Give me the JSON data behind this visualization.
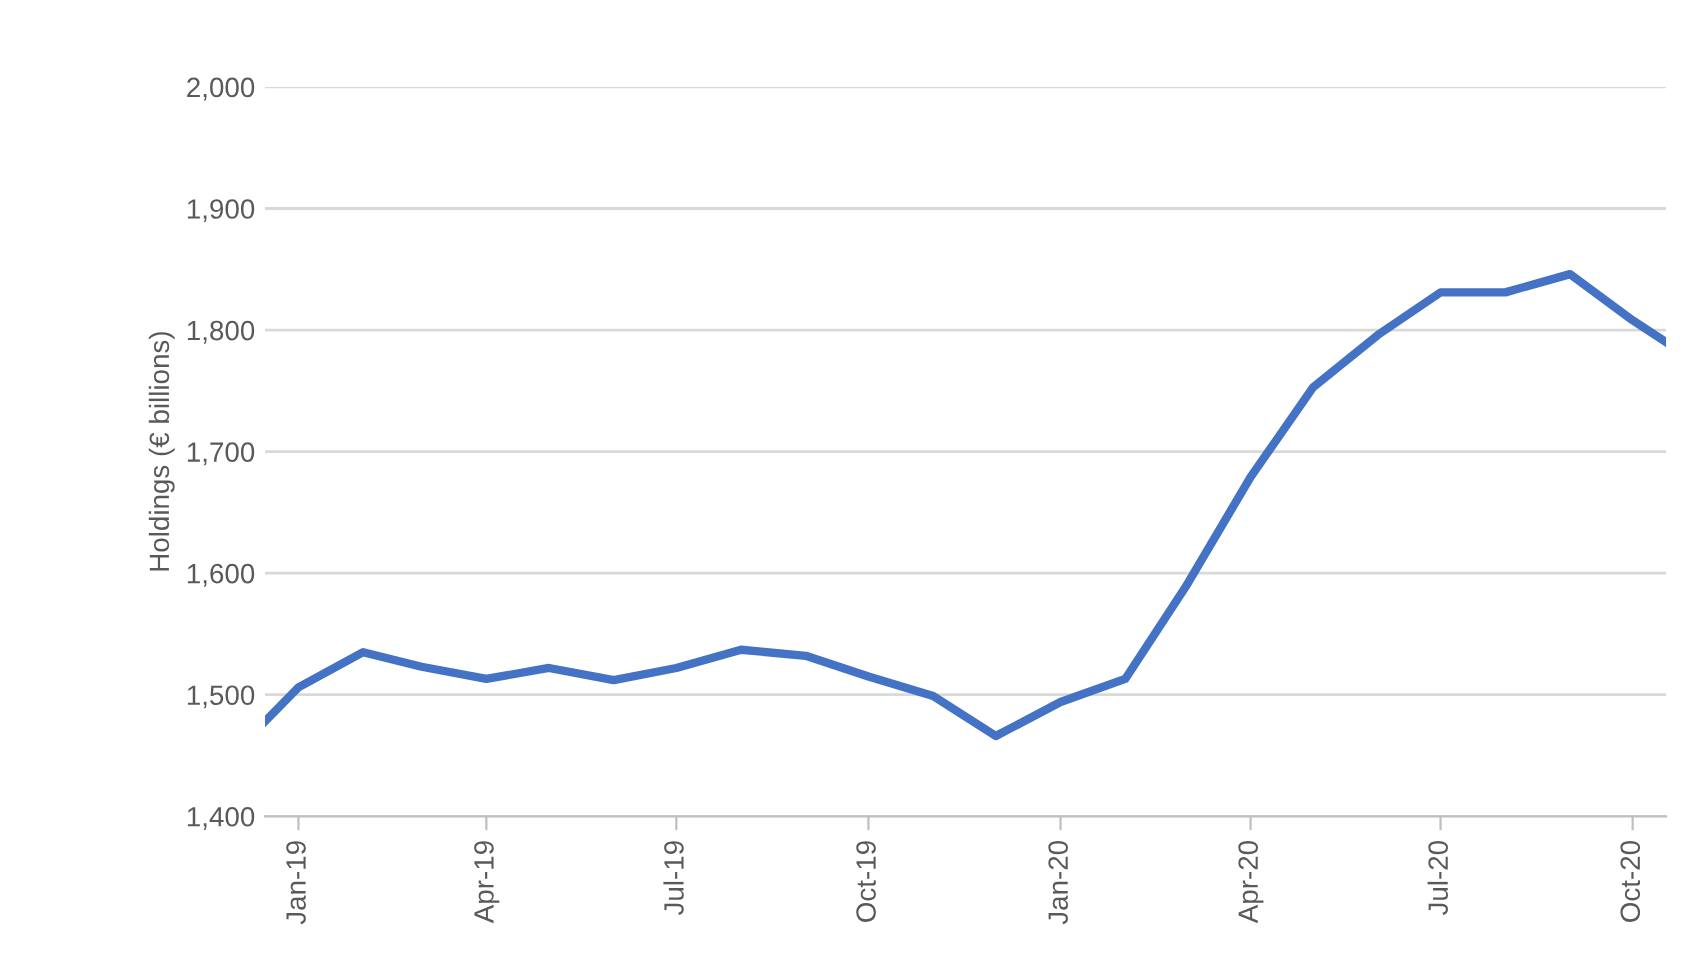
{
  "chart_data": {
    "type": "line",
    "ylabel": "Holdings (€ billions)",
    "x": [
      "2018-12-16",
      "2019-01",
      "2019-02",
      "2019-03",
      "2019-04",
      "2019-05",
      "2019-06",
      "2019-07",
      "2019-08",
      "2019-09",
      "2019-10",
      "2019-11",
      "2019-12",
      "2020-01",
      "2020-02",
      "2020-03",
      "2020-04",
      "2020-05",
      "2020-06",
      "2020-07",
      "2020-08",
      "2020-09",
      "2020-10",
      "2020-10-17"
    ],
    "series": [
      {
        "color": "#4472c4",
        "values": [
          1478,
          1506,
          1535,
          1523,
          1513,
          1522,
          1512,
          1522,
          1537,
          1532,
          1515,
          1499,
          1466,
          1494,
          1513,
          1589,
          1679,
          1753,
          1796,
          1831,
          1831,
          1846,
          1808,
          1790
        ]
      }
    ],
    "xlim": [
      "2018-12-16",
      "2020-10-17"
    ],
    "xticks": [
      {
        "value": "2019-01",
        "label": "Jan-19"
      },
      {
        "value": "2019-04",
        "label": "Apr-19"
      },
      {
        "value": "2019-07",
        "label": "Jul-19"
      },
      {
        "value": "2019-10",
        "label": "Oct-19"
      },
      {
        "value": "2020-01",
        "label": "Jan-20"
      },
      {
        "value": "2020-04",
        "label": "Apr-20"
      },
      {
        "value": "2020-07",
        "label": "Jul-20"
      },
      {
        "value": "2020-10",
        "label": "Oct-20"
      }
    ],
    "ylim": [
      1400,
      2000
    ],
    "yticks": [
      {
        "value": 1400,
        "label": "1,400"
      },
      {
        "value": 1500,
        "label": "1,500"
      },
      {
        "value": 1600,
        "label": "1,600"
      },
      {
        "value": 1700,
        "label": "1,700"
      },
      {
        "value": 1800,
        "label": "1,800"
      },
      {
        "value": 1900,
        "label": "1,900"
      },
      {
        "value": 2000,
        "label": "2,000"
      }
    ],
    "grid": "y",
    "legend": false,
    "marker": "none",
    "line_style": "solid"
  }
}
